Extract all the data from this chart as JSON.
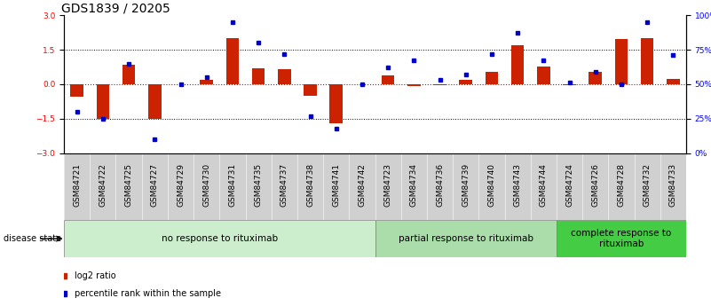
{
  "title": "GDS1839 / 20205",
  "samples": [
    "GSM84721",
    "GSM84722",
    "GSM84725",
    "GSM84727",
    "GSM84729",
    "GSM84730",
    "GSM84731",
    "GSM84735",
    "GSM84737",
    "GSM84738",
    "GSM84741",
    "GSM84742",
    "GSM84723",
    "GSM84734",
    "GSM84736",
    "GSM84739",
    "GSM84740",
    "GSM84743",
    "GSM84744",
    "GSM84724",
    "GSM84726",
    "GSM84728",
    "GSM84732",
    "GSM84733"
  ],
  "log2_ratio": [
    -0.55,
    -1.5,
    0.85,
    -1.5,
    0.0,
    0.2,
    2.0,
    0.7,
    0.65,
    -0.5,
    -1.7,
    0.0,
    0.4,
    -0.07,
    -0.05,
    0.18,
    0.55,
    1.7,
    0.75,
    -0.05,
    0.55,
    1.95,
    2.0,
    0.22
  ],
  "percentile_rank": [
    30,
    25,
    65,
    10,
    50,
    55,
    95,
    80,
    72,
    27,
    18,
    50,
    62,
    67,
    53,
    57,
    72,
    87,
    67,
    51,
    59,
    50,
    95,
    71
  ],
  "groups": [
    {
      "label": "no response to rituximab",
      "start": 0,
      "end": 12,
      "color": "#cceecc"
    },
    {
      "label": "partial response to rituximab",
      "start": 12,
      "end": 19,
      "color": "#aaddaa"
    },
    {
      "label": "complete response to\nrituximab",
      "start": 19,
      "end": 24,
      "color": "#44cc44"
    }
  ],
  "ylim_left": [
    -3,
    3
  ],
  "ylim_right": [
    0,
    100
  ],
  "yticks_left": [
    -3,
    -1.5,
    0,
    1.5,
    3
  ],
  "yticks_right": [
    0,
    25,
    50,
    75,
    100
  ],
  "yticklabels_right": [
    "0%",
    "25%",
    "50%",
    "75%",
    "100%"
  ],
  "bar_color": "#cc2200",
  "dot_color": "#0000cc",
  "hline_color": "#cc0000",
  "dotted_color": "#000000",
  "background_color": "#ffffff",
  "title_fontsize": 10,
  "tick_fontsize": 6.5,
  "group_label_fontsize": 7.5,
  "xtick_bg": "#d0d0d0"
}
